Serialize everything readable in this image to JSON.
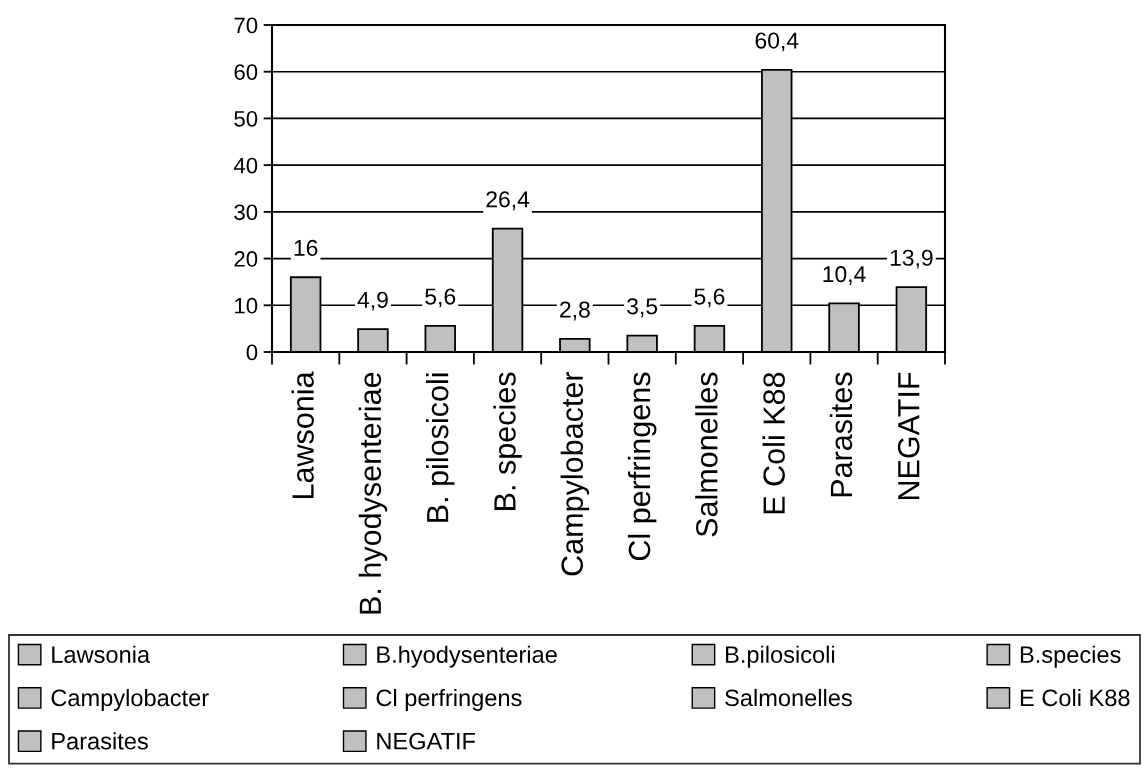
{
  "chart_data": {
    "type": "bar",
    "categories": [
      "Lawsonia",
      "B. hyodysenteriae",
      "B. pilosicoli",
      "B. species",
      "Campylobacter",
      "Cl perfringens",
      "Salmonelles",
      "E Coli K88",
      "Parasites",
      "NEGATIF"
    ],
    "series": [
      {
        "name": "Lawsonia",
        "color": "#c0c0c0",
        "values": [
          16,
          null,
          null,
          null,
          null,
          null,
          null,
          null,
          null,
          null
        ],
        "value_labels": [
          "16",
          null,
          null,
          null,
          null,
          null,
          null,
          null,
          null,
          null
        ]
      },
      {
        "name": "B.hyodysenteriae",
        "color": "#c0c0c0",
        "values": [
          null,
          4.9,
          null,
          null,
          null,
          null,
          null,
          null,
          null,
          null
        ],
        "value_labels": [
          null,
          "4,9",
          null,
          null,
          null,
          null,
          null,
          null,
          null,
          null
        ]
      },
      {
        "name": "B.pilosicoli",
        "color": "#c0c0c0",
        "values": [
          null,
          null,
          5.6,
          null,
          null,
          null,
          null,
          null,
          null,
          null
        ],
        "value_labels": [
          null,
          null,
          "5,6",
          null,
          null,
          null,
          null,
          null,
          null,
          null
        ]
      },
      {
        "name": "B.species",
        "color": "#c0c0c0",
        "values": [
          null,
          null,
          null,
          26.4,
          null,
          null,
          null,
          null,
          null,
          null
        ],
        "value_labels": [
          null,
          null,
          null,
          "26,4",
          null,
          null,
          null,
          null,
          null,
          null
        ]
      },
      {
        "name": "Campylobacter",
        "color": "#c0c0c0",
        "values": [
          null,
          null,
          null,
          null,
          2.8,
          null,
          null,
          null,
          null,
          null
        ],
        "value_labels": [
          null,
          null,
          null,
          null,
          "2,8",
          null,
          null,
          null,
          null,
          null
        ]
      },
      {
        "name": "Cl perfringens",
        "color": "#c0c0c0",
        "values": [
          null,
          null,
          null,
          null,
          null,
          3.5,
          null,
          null,
          null,
          null
        ],
        "value_labels": [
          null,
          null,
          null,
          null,
          null,
          "3,5",
          null,
          null,
          null,
          null
        ]
      },
      {
        "name": "Salmonelles",
        "color": "#c0c0c0",
        "values": [
          null,
          null,
          null,
          null,
          null,
          null,
          5.6,
          null,
          null,
          null
        ],
        "value_labels": [
          null,
          null,
          null,
          null,
          null,
          null,
          "5,6",
          null,
          null,
          null
        ]
      },
      {
        "name": "E Coli K88",
        "color": "#c0c0c0",
        "values": [
          null,
          null,
          null,
          null,
          null,
          null,
          null,
          60.4,
          null,
          null
        ],
        "value_labels": [
          null,
          null,
          null,
          null,
          null,
          null,
          null,
          "60,4",
          null,
          null
        ]
      },
      {
        "name": "Parasites",
        "color": "#c0c0c0",
        "values": [
          null,
          null,
          null,
          null,
          null,
          null,
          null,
          null,
          10.4,
          null
        ],
        "value_labels": [
          null,
          null,
          null,
          null,
          null,
          null,
          null,
          null,
          "10,4",
          null
        ]
      },
      {
        "name": "NEGATIF",
        "color": "#c0c0c0",
        "values": [
          null,
          null,
          null,
          null,
          null,
          null,
          null,
          null,
          null,
          13.9
        ],
        "value_labels": [
          null,
          null,
          null,
          null,
          null,
          null,
          null,
          null,
          null,
          "13,9"
        ]
      }
    ],
    "ylim": [
      0,
      70
    ],
    "yticks": [
      0,
      10,
      20,
      30,
      40,
      50,
      60,
      70
    ],
    "grid": "y",
    "legend": "bottom"
  }
}
